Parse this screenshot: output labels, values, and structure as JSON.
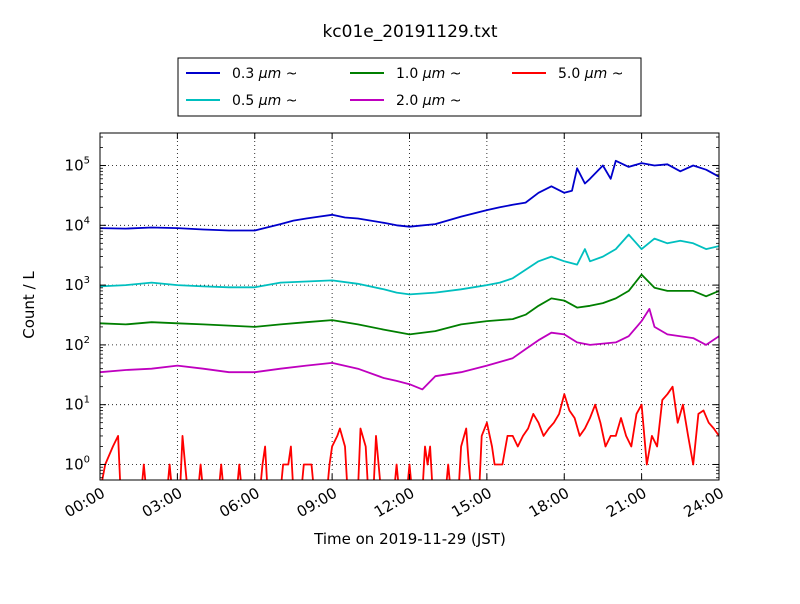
{
  "chart_data": {
    "type": "line",
    "title": "kc01e_20191129.txt",
    "xlabel": "Time on 2019-11-29 (JST)",
    "ylabel": "Count / L",
    "yscale": "log",
    "xlim": [
      0,
      24
    ],
    "ylim": [
      0.55,
      350000
    ],
    "grid": true,
    "legend_position": "top",
    "x_ticks": [
      {
        "value": 0,
        "label": "00:00"
      },
      {
        "value": 3,
        "label": "03:00"
      },
      {
        "value": 6,
        "label": "06:00"
      },
      {
        "value": 9,
        "label": "09:00"
      },
      {
        "value": 12,
        "label": "12:00"
      },
      {
        "value": 15,
        "label": "15:00"
      },
      {
        "value": 18,
        "label": "18:00"
      },
      {
        "value": 21,
        "label": "21:00"
      },
      {
        "value": 24,
        "label": "24:00"
      }
    ],
    "y_ticks": [
      {
        "value": 1,
        "base": "10",
        "exp": "0"
      },
      {
        "value": 10,
        "base": "10",
        "exp": "1"
      },
      {
        "value": 100,
        "base": "10",
        "exp": "2"
      },
      {
        "value": 1000,
        "base": "10",
        "exp": "3"
      },
      {
        "value": 10000,
        "base": "10",
        "exp": "4"
      },
      {
        "value": 100000,
        "base": "10",
        "exp": "5"
      }
    ],
    "series": [
      {
        "name_value": "0.3",
        "name_unit": "μm",
        "name_suffix": "~",
        "color": "#0000cc",
        "points": [
          [
            0,
            9000
          ],
          [
            1,
            8800
          ],
          [
            2,
            9200
          ],
          [
            3,
            9000
          ],
          [
            4,
            8500
          ],
          [
            5,
            8200
          ],
          [
            6,
            8200
          ],
          [
            7,
            10500
          ],
          [
            7.5,
            12000
          ],
          [
            8,
            13000
          ],
          [
            8.5,
            14000
          ],
          [
            9,
            15000
          ],
          [
            9.5,
            13500
          ],
          [
            10,
            13000
          ],
          [
            11,
            11000
          ],
          [
            11.5,
            10000
          ],
          [
            12,
            9500
          ],
          [
            13,
            10500
          ],
          [
            14,
            14000
          ],
          [
            15,
            18000
          ],
          [
            15.5,
            20000
          ],
          [
            16,
            22000
          ],
          [
            16.5,
            24000
          ],
          [
            17,
            35000
          ],
          [
            17.5,
            45000
          ],
          [
            18,
            35000
          ],
          [
            18.3,
            38000
          ],
          [
            18.5,
            90000
          ],
          [
            18.8,
            50000
          ],
          [
            19,
            60000
          ],
          [
            19.5,
            100000
          ],
          [
            19.8,
            60000
          ],
          [
            20,
            120000
          ],
          [
            20.5,
            95000
          ],
          [
            21,
            110000
          ],
          [
            21.5,
            100000
          ],
          [
            22,
            105000
          ],
          [
            22.5,
            80000
          ],
          [
            23,
            100000
          ],
          [
            23.5,
            85000
          ],
          [
            24,
            65000
          ]
        ]
      },
      {
        "name_value": "0.5",
        "name_unit": "μm",
        "name_suffix": "~",
        "color": "#00bfbf",
        "points": [
          [
            0,
            950
          ],
          [
            1,
            1000
          ],
          [
            2,
            1100
          ],
          [
            3,
            1000
          ],
          [
            4,
            950
          ],
          [
            5,
            920
          ],
          [
            6,
            920
          ],
          [
            7,
            1100
          ],
          [
            8,
            1150
          ],
          [
            9,
            1200
          ],
          [
            10,
            1050
          ],
          [
            11,
            850
          ],
          [
            11.5,
            750
          ],
          [
            12,
            700
          ],
          [
            13,
            750
          ],
          [
            14,
            850
          ],
          [
            15,
            1000
          ],
          [
            15.5,
            1100
          ],
          [
            16,
            1300
          ],
          [
            16.5,
            1800
          ],
          [
            17,
            2500
          ],
          [
            17.5,
            3000
          ],
          [
            18,
            2500
          ],
          [
            18.5,
            2200
          ],
          [
            18.8,
            4000
          ],
          [
            19,
            2500
          ],
          [
            19.5,
            3000
          ],
          [
            20,
            4000
          ],
          [
            20.5,
            7000
          ],
          [
            21,
            4000
          ],
          [
            21.5,
            6000
          ],
          [
            22,
            5000
          ],
          [
            22.5,
            5500
          ],
          [
            23,
            5000
          ],
          [
            23.5,
            4000
          ],
          [
            24,
            4500
          ]
        ]
      },
      {
        "name_value": "1.0",
        "name_unit": "μm",
        "name_suffix": "~",
        "color": "#007f00",
        "points": [
          [
            0,
            230
          ],
          [
            1,
            220
          ],
          [
            2,
            240
          ],
          [
            3,
            230
          ],
          [
            4,
            220
          ],
          [
            5,
            210
          ],
          [
            6,
            200
          ],
          [
            7,
            220
          ],
          [
            8,
            240
          ],
          [
            9,
            260
          ],
          [
            10,
            220
          ],
          [
            11,
            180
          ],
          [
            12,
            150
          ],
          [
            13,
            170
          ],
          [
            14,
            220
          ],
          [
            15,
            250
          ],
          [
            16,
            270
          ],
          [
            16.5,
            320
          ],
          [
            17,
            450
          ],
          [
            17.5,
            600
          ],
          [
            18,
            550
          ],
          [
            18.5,
            420
          ],
          [
            19,
            450
          ],
          [
            19.5,
            500
          ],
          [
            20,
            600
          ],
          [
            20.5,
            800
          ],
          [
            21,
            1500
          ],
          [
            21.5,
            900
          ],
          [
            22,
            800
          ],
          [
            23,
            800
          ],
          [
            23.5,
            650
          ],
          [
            24,
            800
          ]
        ]
      },
      {
        "name_value": "2.0",
        "name_unit": "μm",
        "name_suffix": "~",
        "color": "#bf00bf",
        "points": [
          [
            0,
            35
          ],
          [
            1,
            38
          ],
          [
            2,
            40
          ],
          [
            3,
            45
          ],
          [
            4,
            40
          ],
          [
            5,
            35
          ],
          [
            6,
            35
          ],
          [
            7,
            40
          ],
          [
            8,
            45
          ],
          [
            9,
            50
          ],
          [
            10,
            40
          ],
          [
            11,
            28
          ],
          [
            11.5,
            25
          ],
          [
            12,
            22
          ],
          [
            12.5,
            18
          ],
          [
            13,
            30
          ],
          [
            14,
            35
          ],
          [
            15,
            45
          ],
          [
            16,
            60
          ],
          [
            16.5,
            85
          ],
          [
            17,
            120
          ],
          [
            17.5,
            160
          ],
          [
            18,
            150
          ],
          [
            18.5,
            110
          ],
          [
            19,
            100
          ],
          [
            20,
            110
          ],
          [
            20.5,
            140
          ],
          [
            21,
            250
          ],
          [
            21.3,
            400
          ],
          [
            21.5,
            200
          ],
          [
            22,
            150
          ],
          [
            23,
            130
          ],
          [
            23.5,
            100
          ],
          [
            24,
            140
          ]
        ]
      },
      {
        "name_value": "5.0",
        "name_unit": "μm",
        "name_suffix": "~",
        "color": "#ff0000",
        "points": [
          [
            0,
            0.5
          ],
          [
            0.2,
            1
          ],
          [
            0.5,
            2
          ],
          [
            0.7,
            3
          ],
          [
            0.8,
            0.5
          ],
          [
            1.6,
            0.5
          ],
          [
            1.7,
            1
          ],
          [
            1.8,
            0.5
          ],
          [
            2.6,
            0.5
          ],
          [
            2.7,
            1
          ],
          [
            2.8,
            0.5
          ],
          [
            3.1,
            0.5
          ],
          [
            3.2,
            3
          ],
          [
            3.3,
            1
          ],
          [
            3.4,
            0.5
          ],
          [
            3.8,
            0.5
          ],
          [
            3.9,
            1
          ],
          [
            4,
            0.5
          ],
          [
            4.6,
            0.5
          ],
          [
            4.7,
            1
          ],
          [
            4.8,
            0.5
          ],
          [
            5.3,
            0.5
          ],
          [
            5.4,
            1
          ],
          [
            5.5,
            0.5
          ],
          [
            6.2,
            0.5
          ],
          [
            6.3,
            1
          ],
          [
            6.4,
            2
          ],
          [
            6.5,
            0.5
          ],
          [
            7.0,
            0.5
          ],
          [
            7.1,
            1
          ],
          [
            7.3,
            1
          ],
          [
            7.4,
            2
          ],
          [
            7.5,
            0.5
          ],
          [
            7.8,
            0.5
          ],
          [
            7.9,
            1
          ],
          [
            8.2,
            1
          ],
          [
            8.3,
            0.5
          ],
          [
            8.8,
            0.5
          ],
          [
            8.9,
            1
          ],
          [
            9.0,
            2
          ],
          [
            9.2,
            3
          ],
          [
            9.3,
            4
          ],
          [
            9.5,
            2
          ],
          [
            9.6,
            0.5
          ],
          [
            10.0,
            0.5
          ],
          [
            10.1,
            4
          ],
          [
            10.3,
            2
          ],
          [
            10.4,
            0.5
          ],
          [
            10.6,
            0.5
          ],
          [
            10.7,
            3
          ],
          [
            10.8,
            1
          ],
          [
            10.9,
            0.5
          ],
          [
            11.4,
            0.5
          ],
          [
            11.5,
            1
          ],
          [
            11.6,
            0.5
          ],
          [
            11.9,
            0.5
          ],
          [
            12.0,
            1
          ],
          [
            12.1,
            0.5
          ],
          [
            12.5,
            0.5
          ],
          [
            12.6,
            2
          ],
          [
            12.7,
            1
          ],
          [
            12.8,
            2
          ],
          [
            12.9,
            0.5
          ],
          [
            13.4,
            0.5
          ],
          [
            13.5,
            1
          ],
          [
            13.6,
            0.5
          ],
          [
            13.9,
            0.5
          ],
          [
            14.0,
            2
          ],
          [
            14.2,
            4
          ],
          [
            14.3,
            1
          ],
          [
            14.4,
            0.5
          ],
          [
            14.7,
            0.5
          ],
          [
            14.8,
            3
          ],
          [
            15.0,
            5
          ],
          [
            15.2,
            2
          ],
          [
            15.3,
            1
          ],
          [
            15.6,
            1
          ],
          [
            15.8,
            3
          ],
          [
            16.0,
            3
          ],
          [
            16.2,
            2
          ],
          [
            16.4,
            3
          ],
          [
            16.6,
            4
          ],
          [
            16.8,
            7
          ],
          [
            17.0,
            5
          ],
          [
            17.2,
            3
          ],
          [
            17.4,
            4
          ],
          [
            17.6,
            5
          ],
          [
            17.8,
            7
          ],
          [
            18.0,
            15
          ],
          [
            18.2,
            8
          ],
          [
            18.4,
            6
          ],
          [
            18.6,
            3
          ],
          [
            18.8,
            4
          ],
          [
            19.0,
            6
          ],
          [
            19.2,
            10
          ],
          [
            19.4,
            5
          ],
          [
            19.6,
            2
          ],
          [
            19.8,
            3
          ],
          [
            20.0,
            3
          ],
          [
            20.2,
            6
          ],
          [
            20.4,
            3
          ],
          [
            20.6,
            2
          ],
          [
            20.8,
            7
          ],
          [
            21.0,
            10
          ],
          [
            21.2,
            1
          ],
          [
            21.4,
            3
          ],
          [
            21.6,
            2
          ],
          [
            21.8,
            12
          ],
          [
            22.0,
            15
          ],
          [
            22.2,
            20
          ],
          [
            22.4,
            5
          ],
          [
            22.6,
            10
          ],
          [
            22.8,
            3
          ],
          [
            23.0,
            1
          ],
          [
            23.2,
            7
          ],
          [
            23.4,
            8
          ],
          [
            23.6,
            5
          ],
          [
            23.8,
            4
          ],
          [
            24.0,
            3
          ]
        ]
      }
    ]
  }
}
